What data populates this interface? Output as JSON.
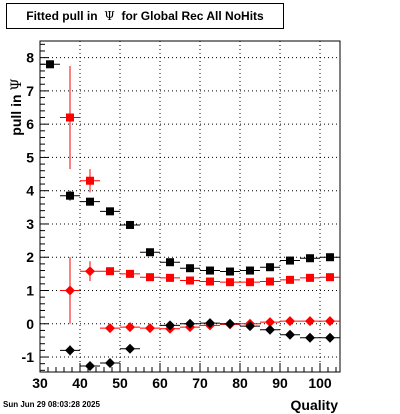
{
  "title": {
    "prefix": "Fitted pull in",
    "symbol": "Ψ",
    "suffix": "for Global Rec All NoHits"
  },
  "timestamp": "Sun Jun 29 08:03:28 2025",
  "chart_data": {
    "type": "scatter",
    "xlabel": "Quality",
    "ylabel_text": "pull in",
    "ylabel_symbol": "Ψ",
    "xlim": [
      30,
      105
    ],
    "ylim": [
      -1.45,
      8.5
    ],
    "xticks": [
      30,
      40,
      50,
      60,
      70,
      80,
      90,
      100
    ],
    "yticks": [
      -1,
      0,
      1,
      2,
      3,
      4,
      5,
      6,
      7,
      8
    ],
    "grid": true,
    "series": [
      {
        "marker": "square",
        "color": "#000000",
        "points": [
          {
            "x": 32.5,
            "y": 7.8,
            "yerr": 0
          },
          {
            "x": 37.5,
            "y": 3.85,
            "yerr": 0.15
          },
          {
            "x": 42.5,
            "y": 3.67,
            "yerr": 0.07
          },
          {
            "x": 47.5,
            "y": 3.38,
            "yerr": 0.05
          },
          {
            "x": 52.5,
            "y": 2.97,
            "yerr": 0.05
          },
          {
            "x": 57.5,
            "y": 2.15,
            "yerr": 0.05
          },
          {
            "x": 62.5,
            "y": 1.85,
            "yerr": 0.05
          },
          {
            "x": 67.5,
            "y": 1.67,
            "yerr": 0.05
          },
          {
            "x": 72.5,
            "y": 1.6,
            "yerr": 0.05
          },
          {
            "x": 77.5,
            "y": 1.57,
            "yerr": 0.05
          },
          {
            "x": 82.5,
            "y": 1.6,
            "yerr": 0.05
          },
          {
            "x": 87.5,
            "y": 1.7,
            "yerr": 0.05
          },
          {
            "x": 92.5,
            "y": 1.9,
            "yerr": 0.05
          },
          {
            "x": 97.5,
            "y": 1.97,
            "yerr": 0.05
          },
          {
            "x": 102.5,
            "y": 2.0,
            "yerr": 0.05
          }
        ]
      },
      {
        "marker": "square",
        "color": "#ff0000",
        "points": [
          {
            "x": 37.5,
            "y": 6.2,
            "yerr": 1.55
          },
          {
            "x": 42.5,
            "y": 4.3,
            "yerr": 0.35
          },
          {
            "x": 47.5,
            "y": 1.58,
            "yerr": 0.1
          },
          {
            "x": 52.5,
            "y": 1.5,
            "yerr": 0.05
          },
          {
            "x": 57.5,
            "y": 1.4,
            "yerr": 0.05
          },
          {
            "x": 62.5,
            "y": 1.38,
            "yerr": 0.05
          },
          {
            "x": 67.5,
            "y": 1.3,
            "yerr": 0.05
          },
          {
            "x": 72.5,
            "y": 1.27,
            "yerr": 0.05
          },
          {
            "x": 77.5,
            "y": 1.25,
            "yerr": 0.05
          },
          {
            "x": 82.5,
            "y": 1.25,
            "yerr": 0.05
          },
          {
            "x": 87.5,
            "y": 1.27,
            "yerr": 0.05
          },
          {
            "x": 92.5,
            "y": 1.32,
            "yerr": 0.05
          },
          {
            "x": 97.5,
            "y": 1.38,
            "yerr": 0.05
          },
          {
            "x": 102.5,
            "y": 1.4,
            "yerr": 0.05
          }
        ]
      },
      {
        "marker": "diamond",
        "color": "#ff0000",
        "points": [
          {
            "x": 37.5,
            "y": 1.0,
            "yerr": 1.0
          },
          {
            "x": 42.5,
            "y": 1.58,
            "yerr": 0.3
          },
          {
            "x": 47.5,
            "y": -0.13,
            "yerr": 0.05
          },
          {
            "x": 52.5,
            "y": -0.1,
            "yerr": 0.05
          },
          {
            "x": 57.5,
            "y": -0.13,
            "yerr": 0.05
          },
          {
            "x": 62.5,
            "y": -0.15,
            "yerr": 0.05
          },
          {
            "x": 67.5,
            "y": -0.1,
            "yerr": 0.05
          },
          {
            "x": 72.5,
            "y": -0.05,
            "yerr": 0.05
          },
          {
            "x": 77.5,
            "y": -0.02,
            "yerr": 0.05
          },
          {
            "x": 82.5,
            "y": 0.0,
            "yerr": 0.05
          },
          {
            "x": 87.5,
            "y": 0.05,
            "yerr": 0.05
          },
          {
            "x": 92.5,
            "y": 0.08,
            "yerr": 0.05
          },
          {
            "x": 97.5,
            "y": 0.08,
            "yerr": 0.05
          },
          {
            "x": 102.5,
            "y": 0.08,
            "yerr": 0.05
          }
        ]
      },
      {
        "marker": "diamond",
        "color": "#000000",
        "points": [
          {
            "x": 37.5,
            "y": -0.8,
            "yerr": 0.15
          },
          {
            "x": 42.5,
            "y": -1.27,
            "yerr": 0.05
          },
          {
            "x": 47.5,
            "y": -1.18,
            "yerr": 0.1
          },
          {
            "x": 52.5,
            "y": -0.75,
            "yerr": 0.05
          },
          {
            "x": 62.5,
            "y": -0.05,
            "yerr": 0.05
          },
          {
            "x": 67.5,
            "y": 0.0,
            "yerr": 0.05
          },
          {
            "x": 72.5,
            "y": 0.02,
            "yerr": 0.05
          },
          {
            "x": 77.5,
            "y": 0.0,
            "yerr": 0.05
          },
          {
            "x": 82.5,
            "y": -0.07,
            "yerr": 0.05
          },
          {
            "x": 87.5,
            "y": -0.18,
            "yerr": 0.05
          },
          {
            "x": 92.5,
            "y": -0.33,
            "yerr": 0.05
          },
          {
            "x": 97.5,
            "y": -0.42,
            "yerr": 0.05
          },
          {
            "x": 102.5,
            "y": -0.42,
            "yerr": 0.05
          }
        ]
      }
    ]
  }
}
